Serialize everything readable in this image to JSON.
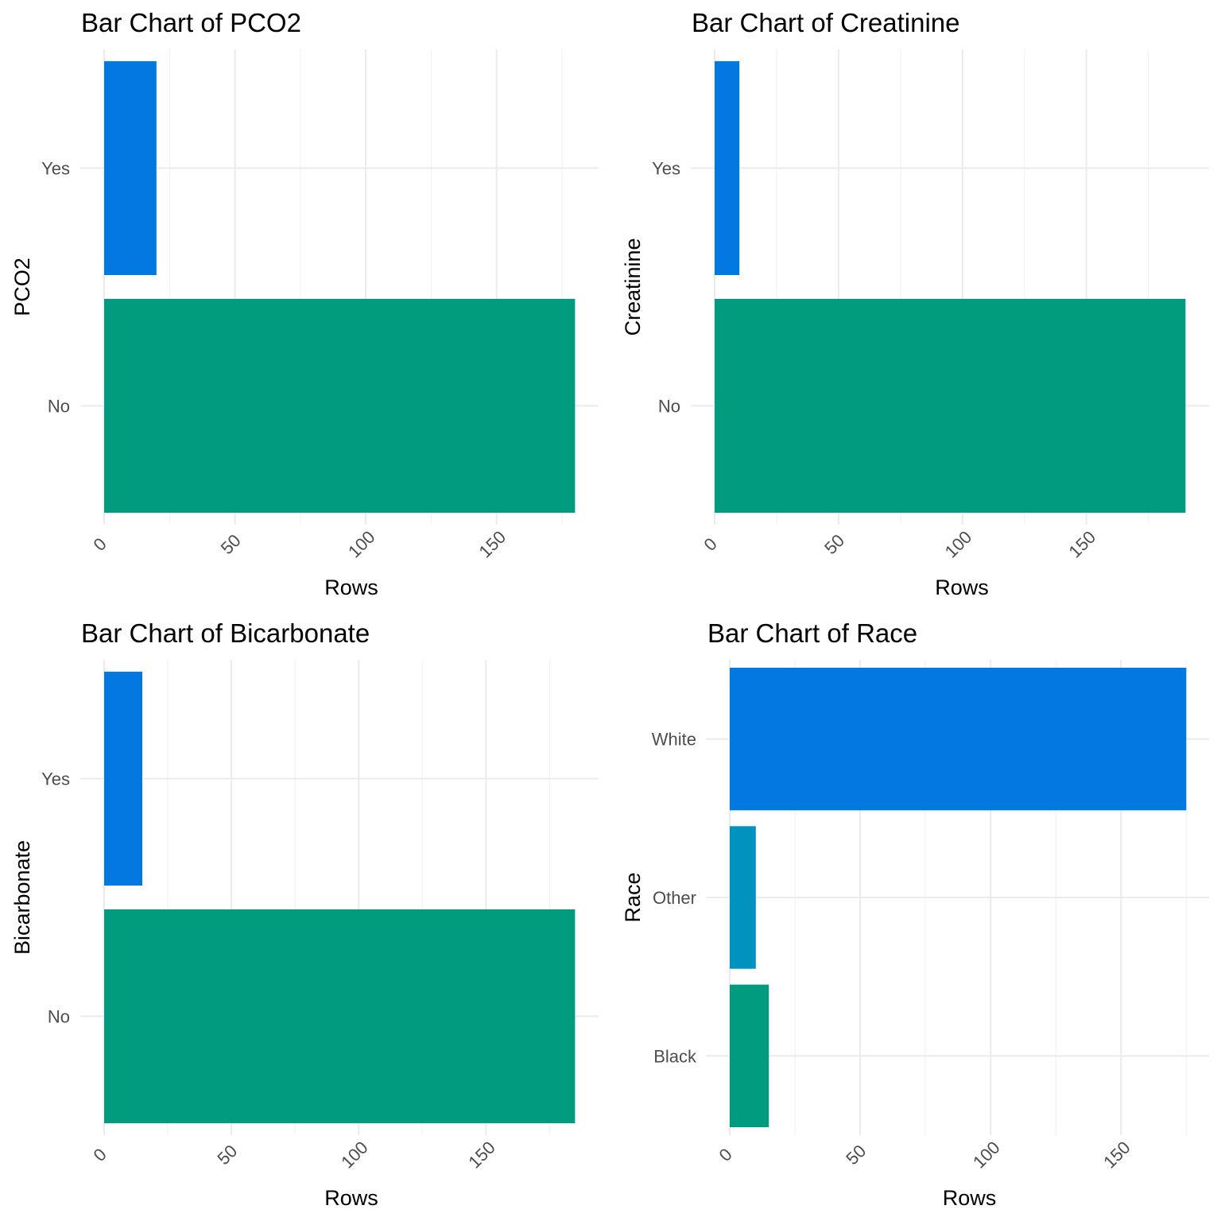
{
  "chart_data": [
    {
      "type": "bar",
      "orientation": "horizontal",
      "title": "Bar Chart of PCO2",
      "xlabel": "Rows",
      "ylabel": "PCO2",
      "categories": [
        "No",
        "Yes"
      ],
      "values": [
        180,
        20
      ],
      "colors": [
        "#009B7F",
        "#0078E0"
      ],
      "xticks": [
        0,
        50,
        100,
        150
      ],
      "xlim": [
        0,
        189
      ],
      "grid": true
    },
    {
      "type": "bar",
      "orientation": "horizontal",
      "title": "Bar Chart of Creatinine",
      "xlabel": "Rows",
      "ylabel": "Creatinine",
      "categories": [
        "No",
        "Yes"
      ],
      "values": [
        190,
        10
      ],
      "colors": [
        "#009B7F",
        "#0078E0"
      ],
      "xticks": [
        0,
        50,
        100,
        150
      ],
      "xlim": [
        0,
        199.5
      ],
      "grid": true
    },
    {
      "type": "bar",
      "orientation": "horizontal",
      "title": "Bar Chart of Bicarbonate",
      "xlabel": "Rows",
      "ylabel": "Bicarbonate",
      "categories": [
        "No",
        "Yes"
      ],
      "values": [
        185,
        15
      ],
      "colors": [
        "#009B7F",
        "#0078E0"
      ],
      "xticks": [
        0,
        50,
        100,
        150
      ],
      "xlim": [
        0,
        194.25
      ],
      "grid": true
    },
    {
      "type": "bar",
      "orientation": "horizontal",
      "title": "Bar Chart of Race",
      "xlabel": "Rows",
      "ylabel": "Race",
      "categories": [
        "Black",
        "Other",
        "White"
      ],
      "values": [
        15,
        10,
        175
      ],
      "colors": [
        "#009B7F",
        "#0093C0",
        "#0078E0"
      ],
      "xticks": [
        0,
        50,
        100,
        150
      ],
      "xlim": [
        0,
        183.75
      ],
      "grid": true
    }
  ]
}
